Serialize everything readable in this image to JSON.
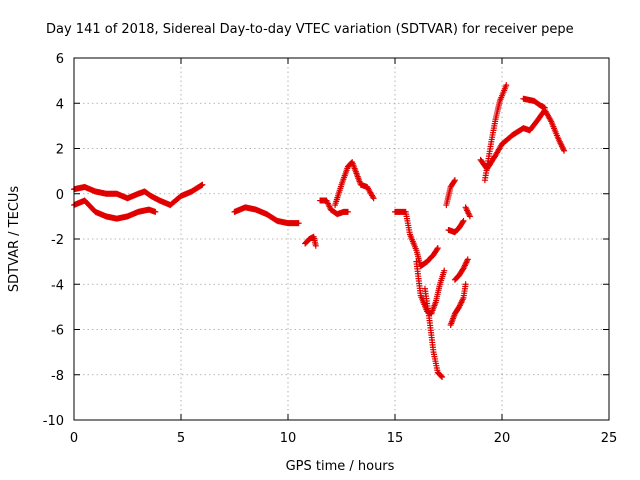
{
  "chart_data": {
    "type": "scatter",
    "title": "Day 141 of 2018, Sidereal Day-to-day VTEC variation (SDTVAR) for receiver pepe",
    "xlabel": "GPS time / hours",
    "ylabel": "SDTVAR / TECUs",
    "xlim": [
      0,
      25
    ],
    "ylim": [
      -10,
      6
    ],
    "x_ticks": [
      0,
      5,
      10,
      15,
      20,
      25
    ],
    "x_tick_labels": [
      "0",
      "5",
      "10",
      "15",
      "20",
      "25"
    ],
    "y_ticks": [
      -10,
      -8,
      -6,
      -4,
      -2,
      0,
      2,
      4,
      6
    ],
    "y_tick_labels": [
      "-10",
      "-8",
      "-6",
      "-4",
      "-2",
      "0",
      "2",
      "4",
      "6"
    ],
    "grid": true,
    "marker": "plus",
    "color": "#e00000",
    "series": [
      {
        "segments": [
          [
            [
              0,
              0.2
            ],
            [
              0.5,
              0.3
            ],
            [
              1,
              0.1
            ],
            [
              1.5,
              0
            ],
            [
              2,
              0
            ],
            [
              2.5,
              -0.2
            ],
            [
              3,
              0
            ],
            [
              3.3,
              0.1
            ],
            [
              3.6,
              -0.1
            ],
            [
              4,
              -0.3
            ],
            [
              4.5,
              -0.5
            ],
            [
              5,
              -0.1
            ],
            [
              5.5,
              0.1
            ],
            [
              6,
              0.4
            ]
          ],
          [
            [
              0,
              -0.5
            ],
            [
              0.5,
              -0.3
            ],
            [
              1,
              -0.8
            ],
            [
              1.5,
              -1
            ],
            [
              2,
              -1.1
            ],
            [
              2.5,
              -1
            ],
            [
              3,
              -0.8
            ],
            [
              3.5,
              -0.7
            ],
            [
              3.8,
              -0.8
            ]
          ],
          [
            [
              7.5,
              -0.8
            ],
            [
              8,
              -0.6
            ],
            [
              8.5,
              -0.7
            ],
            [
              9,
              -0.9
            ],
            [
              9.5,
              -1.2
            ],
            [
              10,
              -1.3
            ],
            [
              10.5,
              -1.3
            ]
          ],
          [
            [
              10.8,
              -2.2
            ],
            [
              11,
              -2
            ],
            [
              11.2,
              -1.9
            ],
            [
              11.3,
              -2.3
            ]
          ],
          [
            [
              11.5,
              -0.3
            ],
            [
              11.8,
              -0.3
            ],
            [
              12,
              -0.7
            ],
            [
              12.3,
              -0.9
            ],
            [
              12.6,
              -0.8
            ],
            [
              12.8,
              -0.8
            ]
          ],
          [
            [
              12.2,
              -0.5
            ],
            [
              12.5,
              0.4
            ],
            [
              12.8,
              1.2
            ],
            [
              13,
              1.4
            ],
            [
              13.2,
              0.9
            ],
            [
              13.4,
              0.4
            ],
            [
              13.7,
              0.3
            ],
            [
              14,
              -0.2
            ]
          ],
          [
            [
              15,
              -0.8
            ],
            [
              15.5,
              -0.8
            ],
            [
              15.7,
              -1.8
            ],
            [
              16,
              -2.5
            ],
            [
              16.2,
              -3.2
            ],
            [
              16.5,
              -3
            ],
            [
              16.8,
              -2.7
            ],
            [
              17,
              -2.4
            ]
          ],
          [
            [
              16,
              -3
            ],
            [
              16.2,
              -4.5
            ],
            [
              16.5,
              -5.2
            ],
            [
              16.7,
              -5.3
            ],
            [
              16.9,
              -4.8
            ],
            [
              17.1,
              -4
            ],
            [
              17.3,
              -3.4
            ]
          ],
          [
            [
              16.4,
              -4.2
            ],
            [
              16.6,
              -5.5
            ],
            [
              16.8,
              -7
            ],
            [
              17,
              -7.9
            ],
            [
              17.2,
              -8.1
            ]
          ],
          [
            [
              17.6,
              -5.8
            ],
            [
              17.8,
              -5.3
            ],
            [
              18,
              -5
            ],
            [
              18.2,
              -4.6
            ],
            [
              18.3,
              -4
            ]
          ],
          [
            [
              17.8,
              -3.8
            ],
            [
              18,
              -3.6
            ],
            [
              18.2,
              -3.3
            ],
            [
              18.4,
              -2.9
            ]
          ],
          [
            [
              17.4,
              -0.5
            ],
            [
              17.6,
              0.3
            ],
            [
              17.8,
              0.6
            ]
          ],
          [
            [
              17.5,
              -1.6
            ],
            [
              17.8,
              -1.7
            ],
            [
              18,
              -1.5
            ],
            [
              18.2,
              -1.2
            ]
          ],
          [
            [
              18.3,
              -0.6
            ],
            [
              18.5,
              -1
            ]
          ],
          [
            [
              19,
              1.5
            ],
            [
              19.3,
              1.1
            ],
            [
              19.5,
              1.4
            ],
            [
              19.7,
              1.7
            ],
            [
              20,
              2.2
            ],
            [
              20.5,
              2.6
            ],
            [
              21,
              2.9
            ],
            [
              21.3,
              2.8
            ],
            [
              21.7,
              3.3
            ],
            [
              22,
              3.7
            ],
            [
              22.3,
              3.2
            ],
            [
              22.6,
              2.5
            ],
            [
              22.9,
              1.9
            ]
          ],
          [
            [
              19.2,
              0.6
            ],
            [
              19.5,
              2.3
            ],
            [
              19.7,
              3.3
            ],
            [
              19.9,
              4.1
            ],
            [
              20.2,
              4.8
            ]
          ],
          [
            [
              21,
              4.2
            ],
            [
              21.5,
              4.1
            ],
            [
              21.8,
              3.9
            ],
            [
              22,
              3.8
            ]
          ]
        ]
      }
    ]
  }
}
